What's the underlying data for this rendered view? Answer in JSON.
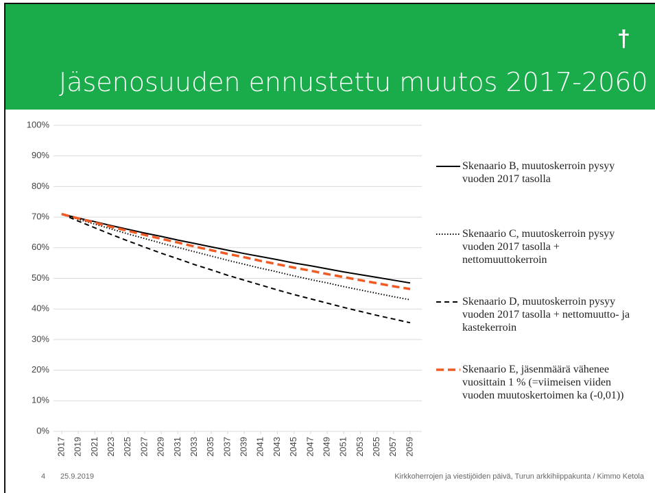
{
  "header": {
    "title": "Jäsenosuuden ennustettu muutos 2017-2060",
    "icon": "†"
  },
  "chart_data": {
    "type": "line",
    "x": [
      2017,
      2019,
      2021,
      2023,
      2025,
      2027,
      2029,
      2031,
      2033,
      2035,
      2037,
      2039,
      2041,
      2043,
      2045,
      2047,
      2049,
      2051,
      2053,
      2055,
      2057,
      2059
    ],
    "xlim": [
      2017,
      2059
    ],
    "xticks": [
      2017,
      2019,
      2021,
      2023,
      2025,
      2027,
      2029,
      2031,
      2033,
      2035,
      2037,
      2039,
      2041,
      2043,
      2045,
      2047,
      2049,
      2051,
      2053,
      2055,
      2057,
      2059
    ],
    "ylim": [
      0,
      100
    ],
    "yticks": [
      {
        "value": 0,
        "label": "0%"
      },
      {
        "value": 10,
        "label": "10%"
      },
      {
        "value": 20,
        "label": "20%"
      },
      {
        "value": 30,
        "label": "30%"
      },
      {
        "value": 40,
        "label": "40%"
      },
      {
        "value": 50,
        "label": "50%"
      },
      {
        "value": 60,
        "label": "60%"
      },
      {
        "value": 70,
        "label": "70%"
      },
      {
        "value": 80,
        "label": "80%"
      },
      {
        "value": 90,
        "label": "90%"
      },
      {
        "value": 100,
        "label": "100%"
      }
    ],
    "grid": true,
    "legend": "right",
    "series": [
      {
        "name": "Skenaario B, muutoskerroin pysyy vuoden 2017 tasolla",
        "color": "#000000",
        "dash": "solid",
        "values": [
          71,
          69.7,
          68.5,
          67.2,
          66,
          64.8,
          63.7,
          62.5,
          61.4,
          60.3,
          59.2,
          58.1,
          57.1,
          56.1,
          55,
          54.1,
          53.1,
          52.1,
          51.2,
          50.3,
          49.4,
          48.5
        ]
      },
      {
        "name": "Skenaario C, muutoskerroin pysyy vuoden 2017 tasolla + nettomuuttokerroin",
        "color": "#000000",
        "dash": "dotted",
        "values": [
          71,
          69.3,
          67.7,
          66.1,
          64.5,
          63,
          61.5,
          60.1,
          58.7,
          57.3,
          55.9,
          54.6,
          53.3,
          52.1,
          50.8,
          49.6,
          48.5,
          47.3,
          46.2,
          45.1,
          44,
          43
        ]
      },
      {
        "name": "Skenaario D, muutoskerroin pysyy vuoden 2017 tasolla + nettomuutto- ja kastekerroin",
        "color": "#000000",
        "dash": "dashed",
        "values": [
          71,
          68.7,
          66.5,
          64.3,
          62.2,
          60.2,
          58.2,
          56.4,
          54.5,
          52.8,
          51,
          49.4,
          47.8,
          46.2,
          44.7,
          43.3,
          41.9,
          40.5,
          39.2,
          37.9,
          36.7,
          35.5
        ]
      },
      {
        "name": "Skenaario E, jäsenmäärä vähenee vuosittain 1 % (=viimeisen viiden vuoden muutoskertoimen ka (-0,01))",
        "color": "#f15a22",
        "dash": "thickdashed",
        "values": [
          71,
          69.6,
          68.2,
          66.8,
          65.5,
          64.2,
          62.9,
          61.7,
          60.4,
          59.2,
          58,
          56.9,
          55.7,
          54.6,
          53.5,
          52.5,
          51.4,
          50.4,
          49.4,
          48.4,
          47.4,
          46.5
        ]
      }
    ]
  },
  "footer": {
    "page": "4",
    "date": "25.9.2019",
    "text": "Kirkkoherrojen ja viestijöiden päivä, Turun arkkihiippakunta / Kimmo Ketola"
  }
}
